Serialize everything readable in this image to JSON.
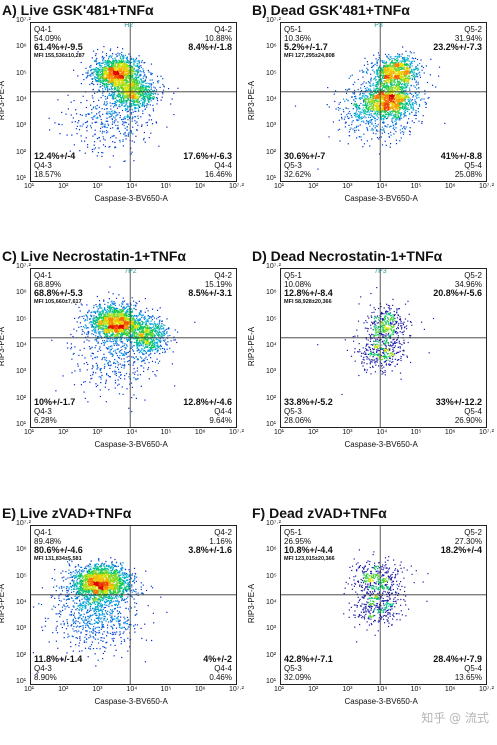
{
  "chart_data": [
    {
      "type": "scatter",
      "title": "A) Live GSK'481+TNFα",
      "xlabel": "Caspase-3-BV650-A",
      "ylabel": "RIP3-PE-A",
      "xscale": "log",
      "yscale": "log",
      "x_ticks": [
        "10¹",
        "10²",
        "10³",
        "10⁴",
        "10⁵",
        "10⁶",
        "10⁷·²"
      ],
      "y_ticks": [
        "10⁷·²",
        "10⁶",
        "10⁵",
        "10⁴",
        "10³",
        "10²",
        "10¹"
      ],
      "gate": "H2",
      "quadrants": {
        "ul": {
          "name": "Q4-1",
          "pct": "54.09%",
          "stat": "61.4%+/-9.5",
          "mfi": "MFI 155,536±10,287"
        },
        "ur": {
          "name": "Q4-2",
          "pct": "10.88%",
          "stat": "8.4%+/-1.8"
        },
        "ll": {
          "name": "Q4-3",
          "pct": "18.57%",
          "stat": "12.4%+/-4"
        },
        "lr": {
          "name": "Q4-4",
          "pct": "16.46%",
          "stat": "17.6%+/-6.3"
        }
      },
      "density": "high",
      "clusters": [
        {
          "x": 3.6,
          "y": 5.25,
          "sx": 0.38,
          "sy": 0.32,
          "w": 0.55
        },
        {
          "x": 4.1,
          "y": 4.45,
          "sx": 0.35,
          "sy": 0.3,
          "w": 0.3
        },
        {
          "x": 3.4,
          "y": 3.4,
          "sx": 0.7,
          "sy": 0.7,
          "w": 0.15
        }
      ]
    },
    {
      "type": "scatter",
      "title": "B) Dead GSK'481+TNFα",
      "xlabel": "Caspase-3-BV650-A",
      "ylabel": "RIP3-PE-A",
      "xscale": "log",
      "yscale": "log",
      "x_ticks": [
        "10¹",
        "10²",
        "10³",
        "10⁴",
        "10⁵",
        "10⁶",
        "10⁷·²"
      ],
      "y_ticks": [
        "10⁷·²",
        "10⁶",
        "10⁵",
        "10⁴",
        "10³",
        "10²",
        "10¹"
      ],
      "gate": "P3",
      "quadrants": {
        "ul": {
          "name": "Q5-1",
          "pct": "10.36%",
          "stat": "5.2%+/-1.7",
          "mfi": "MFI 127,295±24,808"
        },
        "ur": {
          "name": "Q5-2",
          "pct": "31.94%",
          "stat": "23.2%+/-7.3"
        },
        "ll": {
          "name": "Q5-3",
          "pct": "32.62%",
          "stat": "30.6%+/-7"
        },
        "lr": {
          "name": "Q5-4",
          "pct": "25.08%",
          "stat": "41%+/-8.8"
        }
      },
      "density": "high",
      "clusters": [
        {
          "x": 4.45,
          "y": 5.3,
          "sx": 0.35,
          "sy": 0.3,
          "w": 0.35
        },
        {
          "x": 4.25,
          "y": 4.2,
          "sx": 0.4,
          "sy": 0.35,
          "w": 0.45
        },
        {
          "x": 3.8,
          "y": 3.7,
          "sx": 0.6,
          "sy": 0.6,
          "w": 0.2
        }
      ]
    },
    {
      "type": "scatter",
      "title": "C) Live Necrostatin-1+TNFα",
      "xlabel": "Caspase-3-BV650-A",
      "ylabel": "RIP3-PE-A",
      "xscale": "log",
      "yscale": "log",
      "x_ticks": [
        "10¹",
        "10²",
        "10³",
        "10⁴",
        "10⁵",
        "10⁶",
        "10⁷·²"
      ],
      "y_ticks": [
        "10⁷·²",
        "10⁶",
        "10⁵",
        "10⁴",
        "10³",
        "10²",
        "10¹"
      ],
      "gate": "7P2",
      "quadrants": {
        "ul": {
          "name": "Q4-1",
          "pct": "68.89%",
          "stat": "68.8%+/-5.3",
          "mfi": "MFI 105,660±7,617"
        },
        "ur": {
          "name": "Q4-2",
          "pct": "15.19%",
          "stat": "8.5%+/-3.1"
        },
        "ll": {
          "name": "Q4-3",
          "pct": "6.28%",
          "stat": "10%+/-1.7"
        },
        "lr": {
          "name": "Q4-4",
          "pct": "9.64%",
          "stat": "12.8%+/-4.6"
        }
      },
      "density": "high",
      "clusters": [
        {
          "x": 3.55,
          "y": 5.1,
          "sx": 0.4,
          "sy": 0.35,
          "w": 0.6
        },
        {
          "x": 4.5,
          "y": 4.6,
          "sx": 0.3,
          "sy": 0.35,
          "w": 0.25
        },
        {
          "x": 3.5,
          "y": 3.8,
          "sx": 0.7,
          "sy": 0.7,
          "w": 0.15
        }
      ]
    },
    {
      "type": "scatter",
      "title": "D) Dead Necrostatin-1+TNFα",
      "xlabel": "Caspase-3-BV650-A",
      "ylabel": "RIP3-PE-A",
      "xscale": "log",
      "yscale": "log",
      "x_ticks": [
        "10¹",
        "10²",
        "10³",
        "10⁴",
        "10⁵",
        "10⁶",
        "10⁷·²"
      ],
      "y_ticks": [
        "10⁷·²",
        "10⁶",
        "10⁵",
        "10⁴",
        "10³",
        "10²",
        "10¹"
      ],
      "gate": "7P3",
      "quadrants": {
        "ul": {
          "name": "Q5-1",
          "pct": "10.08%",
          "stat": "12.8%+/-8.4",
          "mfi": "MFI 58,928±20,366"
        },
        "ur": {
          "name": "Q5-2",
          "pct": "34.96%",
          "stat": "20.8%+/-5.6"
        },
        "ll": {
          "name": "Q5-3",
          "pct": "28.06%",
          "stat": "33.8%+/-5.2"
        },
        "lr": {
          "name": "Q5-4",
          "pct": "26.90%",
          "stat": "33%+/-12.2"
        }
      },
      "density": "low",
      "clusters": [
        {
          "x": 4.2,
          "y": 5.1,
          "sx": 0.3,
          "sy": 0.35,
          "w": 0.4
        },
        {
          "x": 4.0,
          "y": 4.0,
          "sx": 0.35,
          "sy": 0.4,
          "w": 0.45
        },
        {
          "x": 4.0,
          "y": 4.5,
          "sx": 0.6,
          "sy": 0.7,
          "w": 0.15
        }
      ]
    },
    {
      "type": "scatter",
      "title": "E) Live zVAD+TNFα",
      "xlabel": "Caspase-3-BV650-A",
      "ylabel": "RIP3-PE-A",
      "xscale": "log",
      "yscale": "log",
      "x_ticks": [
        "10¹",
        "10²",
        "10³",
        "10⁴",
        "10⁵",
        "10⁶",
        "10⁷·²"
      ],
      "y_ticks": [
        "10⁷·²",
        "10⁶",
        "10⁵",
        "10⁴",
        "10³",
        "10²",
        "10¹"
      ],
      "gate": "",
      "quadrants": {
        "ul": {
          "name": "Q4-1",
          "pct": "89.48%",
          "stat": "80.6%+/-4.6",
          "mfi": "MFI 131,834±5,581"
        },
        "ur": {
          "name": "Q4-2",
          "pct": "1.16%",
          "stat": "3.8%+/-1.6"
        },
        "ll": {
          "name": "Q4-3",
          "pct": "8.90%",
          "stat": "11.8%+/-1.4"
        },
        "lr": {
          "name": "Q4-4",
          "pct": "0.46%",
          "stat": "4%+/-2"
        }
      },
      "density": "high",
      "clusters": [
        {
          "x": 3.1,
          "y": 5.0,
          "sx": 0.45,
          "sy": 0.35,
          "w": 0.7
        },
        {
          "x": 2.9,
          "y": 4.1,
          "sx": 0.6,
          "sy": 0.6,
          "w": 0.2
        },
        {
          "x": 3.0,
          "y": 3.2,
          "sx": 0.7,
          "sy": 0.6,
          "w": 0.1
        }
      ]
    },
    {
      "type": "scatter",
      "title": "F) Dead zVAD+TNFα",
      "xlabel": "Caspase-3-BV650-A",
      "ylabel": "RIP3-PE-A",
      "xscale": "log",
      "yscale": "log",
      "x_ticks": [
        "10¹",
        "10²",
        "10³",
        "10⁴",
        "10⁵",
        "10⁶",
        "10⁷·²"
      ],
      "y_ticks": [
        "10⁷·²",
        "10⁶",
        "10⁵",
        "10⁴",
        "10³",
        "10²",
        "10¹"
      ],
      "gate": "",
      "quadrants": {
        "ul": {
          "name": "Q5-1",
          "pct": "26.95%",
          "stat": "10.8%+/-4.4",
          "mfi": "MFI 123,015±20,366"
        },
        "ur": {
          "name": "Q5-2",
          "pct": "27.30%",
          "stat": "18.2%+/-4"
        },
        "ll": {
          "name": "Q5-3",
          "pct": "32.09%",
          "stat": "42.8%+/-7.1"
        },
        "lr": {
          "name": "Q5-4",
          "pct": "13.65%",
          "stat": "28.4%+/-7.9"
        }
      },
      "density": "low",
      "clusters": [
        {
          "x": 3.9,
          "y": 5.2,
          "sx": 0.35,
          "sy": 0.35,
          "w": 0.4
        },
        {
          "x": 3.9,
          "y": 4.1,
          "sx": 0.35,
          "sy": 0.4,
          "w": 0.45
        },
        {
          "x": 3.8,
          "y": 4.6,
          "sx": 0.6,
          "sy": 0.7,
          "w": 0.15
        }
      ]
    }
  ],
  "watermark": "知乎 @ 流式 "
}
